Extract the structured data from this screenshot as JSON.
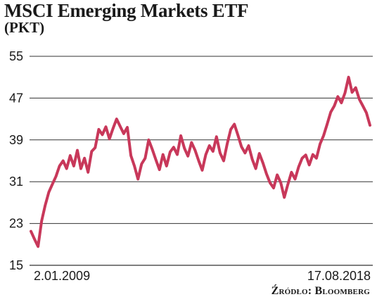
{
  "title": "MSCI Emerging Markets ETF",
  "subtitle": "(PKT)",
  "source": "Źródło: Bloomberg",
  "chart_data": {
    "type": "line",
    "title": "MSCI Emerging Markets ETF",
    "ylabel": "(PKT)",
    "xlabel": "",
    "ylim": [
      15,
      55
    ],
    "yticks": [
      15,
      23,
      31,
      39,
      47,
      55
    ],
    "xtick_labels": [
      "2.01.2009",
      "17.08.2018"
    ],
    "grid": "horizontal",
    "color": "#c8385a",
    "series": [
      {
        "values": [
          21.5,
          20,
          18.6,
          23.5,
          26.5,
          29,
          30.5,
          32,
          34,
          35,
          33.5,
          36,
          34,
          37,
          33.5,
          35.5,
          32.8,
          36.8,
          37.5,
          41,
          40,
          41.5,
          39.2,
          41.2,
          43,
          41.6,
          40.2,
          41.4,
          36,
          34,
          31.5,
          34.4,
          35.5,
          39,
          37.2,
          35.2,
          33.3,
          36.2,
          34,
          36.7,
          37.6,
          36.2,
          39.8,
          37.4,
          35.9,
          38.5,
          37,
          35,
          33.2,
          36.2,
          37.9,
          36.8,
          39.6,
          36.5,
          35,
          38.3,
          41,
          42,
          39.9,
          37.7,
          36.5,
          37.9,
          35.3,
          33.5,
          36.4,
          34.6,
          32.5,
          30.8,
          29.8,
          32.3,
          30.8,
          28,
          30.5,
          32.8,
          31.5,
          33.8,
          35.5,
          36.1,
          34.2,
          36.2,
          35.5,
          38.2,
          39.8,
          42,
          44.3,
          45.5,
          47.3,
          46.1,
          48,
          51,
          48.1,
          49,
          46.8,
          45.5,
          44.2,
          41.8
        ]
      }
    ]
  }
}
